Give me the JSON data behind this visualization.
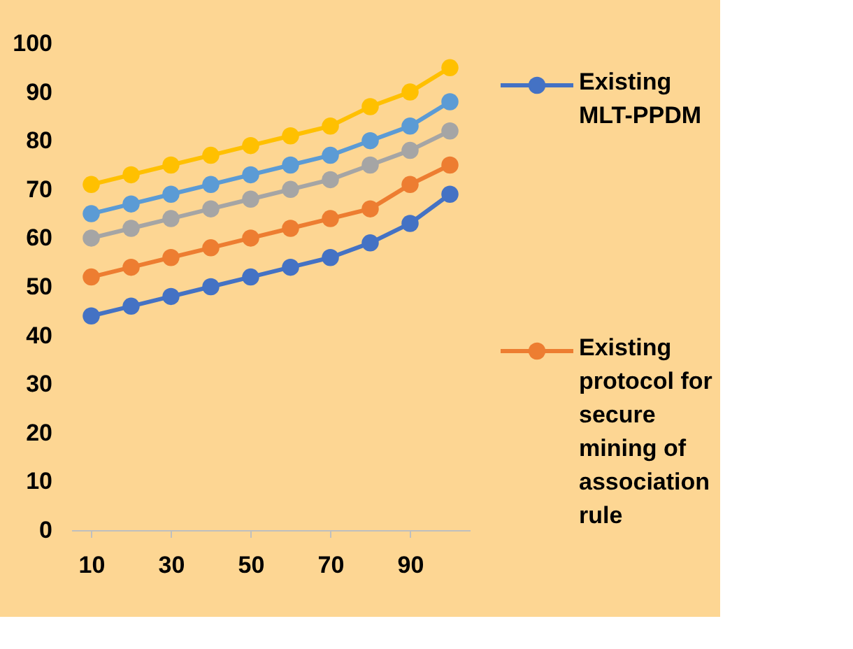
{
  "chart_data": {
    "type": "line",
    "x": [
      10,
      20,
      30,
      40,
      50,
      60,
      70,
      80,
      90,
      100
    ],
    "xlim": [
      5,
      105
    ],
    "xticks": [
      10,
      30,
      50,
      70,
      90
    ],
    "ylim": [
      0,
      100
    ],
    "yticks": [
      0,
      10,
      20,
      30,
      40,
      50,
      60,
      70,
      80,
      90,
      100
    ],
    "grid": false,
    "legend": "right",
    "marker": "circle",
    "line_style": "solid",
    "series": [
      {
        "name": "Existing MLT-PPDM",
        "color": "#4472c4",
        "values": [
          44,
          46,
          48,
          50,
          52,
          54,
          56,
          59,
          63,
          69
        ]
      },
      {
        "name": "Existing protocol for secure mining of association rule",
        "color": "#ed7d31",
        "values": [
          52,
          54,
          56,
          58,
          60,
          62,
          64,
          66,
          71,
          75
        ]
      },
      {
        "color": "#a5a5a5",
        "values": [
          60,
          62,
          64,
          66,
          68,
          70,
          72,
          75,
          78,
          82
        ]
      },
      {
        "color": "#5b9bd5",
        "values": [
          65,
          67,
          69,
          71,
          73,
          75,
          77,
          80,
          83,
          88
        ]
      },
      {
        "color": "#ffc000",
        "values": [
          71,
          73,
          75,
          77,
          79,
          81,
          83,
          87,
          90,
          95
        ]
      }
    ]
  }
}
